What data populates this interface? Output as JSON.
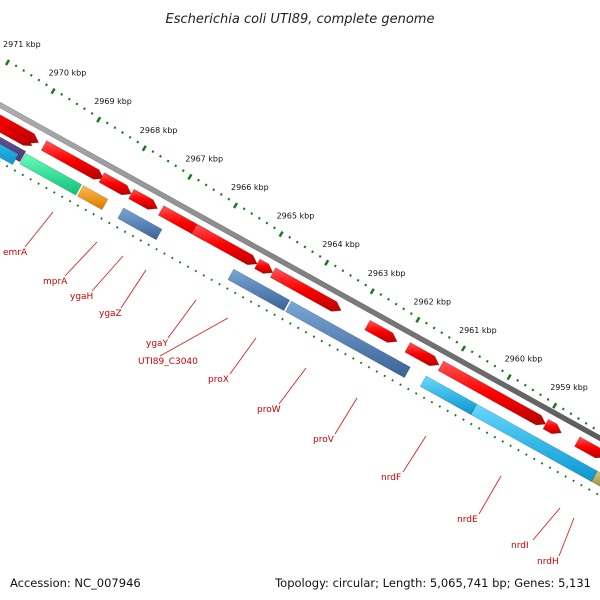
{
  "title": "Escherichia coli UTI89, complete genome",
  "footer": {
    "accession": "Accession: NC_007946",
    "topology": "Topology: circular; Length: 5,065,741 bp; Genes: 5,131"
  },
  "scale": {
    "tick_labels": [
      "2971 kbp",
      "2970 kbp",
      "2969 kbp",
      "2968 kbp",
      "2967 kbp",
      "2966 kbp",
      "2965 kbp",
      "2964 kbp",
      "2963 kbp",
      "2962 kbp",
      "2961 kbp",
      "2960 kbp",
      "2959 kbp"
    ]
  },
  "genes": [
    {
      "label": "emrA"
    },
    {
      "label": "mprA"
    },
    {
      "label": "ygaH"
    },
    {
      "label": "ygaZ"
    },
    {
      "label": "ygaY"
    },
    {
      "label": "UTI89_C3040"
    },
    {
      "label": "proX"
    },
    {
      "label": "proW"
    },
    {
      "label": "proV"
    },
    {
      "label": "nrdF"
    },
    {
      "label": "nrdE"
    },
    {
      "label": "nrdI"
    },
    {
      "label": "nrdH"
    }
  ],
  "colors": {
    "forward_gene": "#ff0000",
    "backbone": "#808080",
    "teal_gene": "#33ee99",
    "orange_gene": "#ff9900",
    "steel_blue_gene": "#4f7fb5",
    "cyan_gene": "#22bbee",
    "olive_gene": "#b5aa60",
    "tick_green": "#1a7a1a",
    "label_red": "#cc0000"
  }
}
